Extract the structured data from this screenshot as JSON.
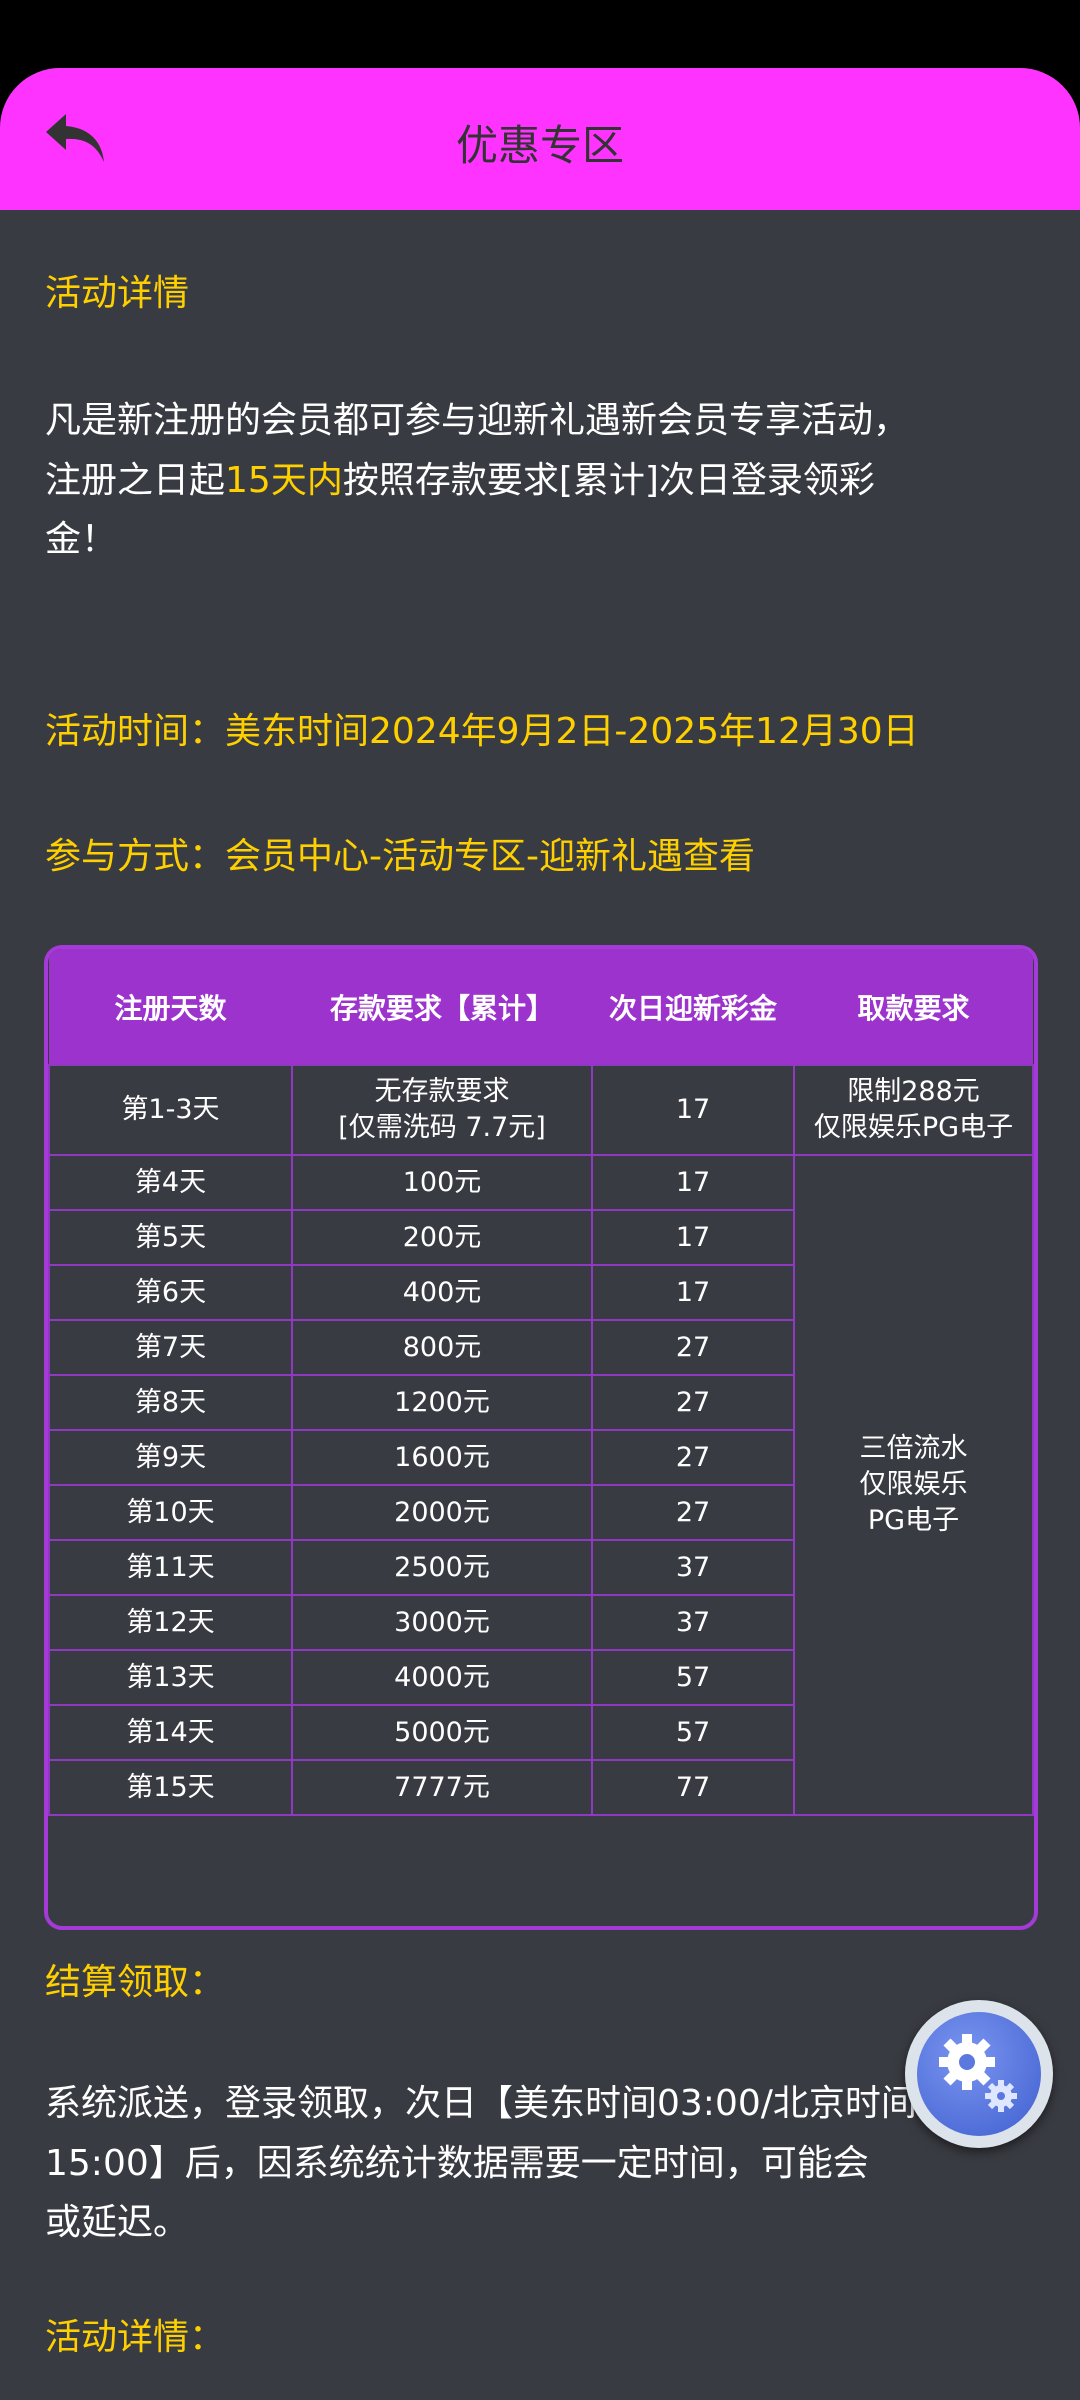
{
  "header": {
    "title": "优惠专区",
    "back_icon": "back-arrow-icon",
    "bg_color": "#ff33ff"
  },
  "content": {
    "section1_title": "活动详情",
    "intro_line1": "凡是新注册的会员都可参与迎新礼遇新会员专享活动，",
    "intro_line2_a": "注册之日起",
    "intro_line2_highlight": "15天内",
    "intro_line2_b": "按照存款要求[累计]次日登录领彩",
    "intro_line3": "金！",
    "time": "活动时间：美东时间2024年9月2日-2025年12月30日",
    "method": "参与方式：会员中心-活动专区-迎新礼遇查看",
    "settle_title": "结算领取：",
    "settle_line1": "系统派送，登录领取，次日【美东时间03:00/北京时间",
    "settle_line2": "15:00】后，因系统统计数据需要一定时间，可能会",
    "settle_line3": "或延迟。",
    "section2_title": "活动详情：",
    "accent_color": "#ffd000"
  },
  "table": {
    "headers": [
      "注册天数",
      "存款要求【累计】",
      "次日迎新彩金",
      "取款要求"
    ],
    "first_row": {
      "day": "第1-3天",
      "deposit_line1": "无存款要求",
      "deposit_line2": "[仅需洗码 7.7元]",
      "bonus": "17",
      "withdraw_line1": "限制288元",
      "withdraw_line2": "仅限娱乐PG电子"
    },
    "rows": [
      [
        "第4天",
        "100元",
        "17"
      ],
      [
        "第5天",
        "200元",
        "17"
      ],
      [
        "第6天",
        "400元",
        "17"
      ],
      [
        "第7天",
        "800元",
        "27"
      ],
      [
        "第8天",
        "1200元",
        "27"
      ],
      [
        "第9天",
        "1600元",
        "27"
      ],
      [
        "第10天",
        "2000元",
        "27"
      ],
      [
        "第11天",
        "2500元",
        "37"
      ],
      [
        "第12天",
        "3000元",
        "37"
      ],
      [
        "第13天",
        "4000元",
        "57"
      ],
      [
        "第14天",
        "5000元",
        "57"
      ],
      [
        "第15天",
        "7777元",
        "77"
      ]
    ],
    "merged_withdraw_line1": "三倍流水",
    "merged_withdraw_line2": "仅限娱乐",
    "merged_withdraw_line3": "PG电子"
  },
  "floating_button": {
    "icon": "gears-icon"
  }
}
